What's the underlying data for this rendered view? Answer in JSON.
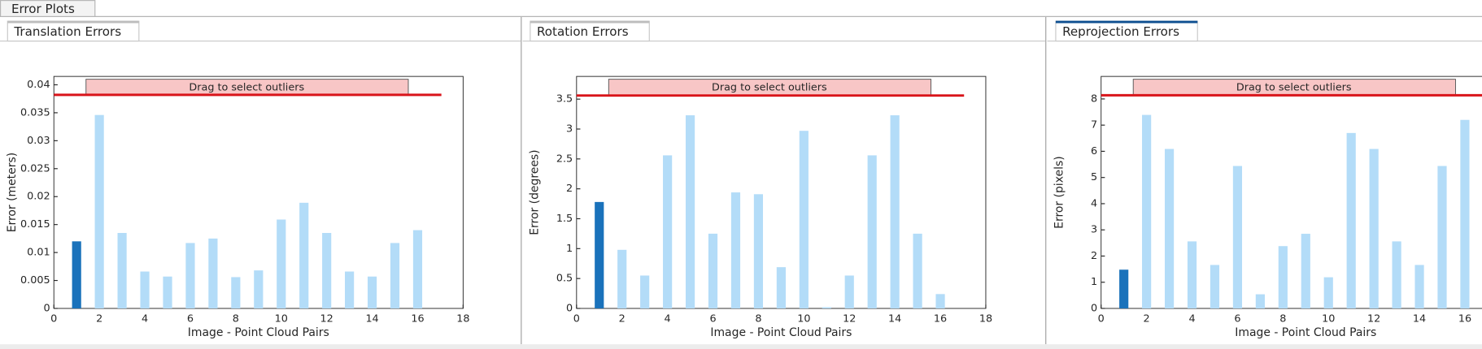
{
  "tabs": {
    "main": "Error Plots"
  },
  "chart_data": [
    {
      "type": "bar",
      "tab": "Translation Errors",
      "button": "Drag to select outliers",
      "xlabel": "Image - Point Cloud Pairs",
      "ylabel": "Error (meters)",
      "x": [
        1,
        2,
        3,
        4,
        5,
        6,
        7,
        8,
        9,
        10,
        11,
        12,
        13,
        14,
        15,
        16
      ],
      "values": [
        0.012,
        0.0346,
        0.0135,
        0.0066,
        0.0057,
        0.0117,
        0.0125,
        0.0056,
        0.0068,
        0.0159,
        0.0189,
        0.0135,
        0.0066,
        0.0057,
        0.0117,
        0.014
      ],
      "threshold": 0.0382,
      "color": "#b3dcf8",
      "selected_color": "#1a72bb",
      "selected": 1,
      "threshold_color": "#d9141a",
      "xlim": [
        0,
        18
      ],
      "xticks": [
        0,
        2,
        4,
        6,
        8,
        10,
        12,
        14,
        16,
        18
      ],
      "ylim": [
        0,
        0.0415
      ],
      "yticks": [
        0,
        0.005,
        0.01,
        0.015,
        0.02,
        0.025,
        0.03,
        0.035,
        0.04
      ]
    },
    {
      "type": "bar",
      "tab": "Rotation Errors",
      "button": "Drag to select outliers",
      "xlabel": "Image - Point Cloud Pairs",
      "ylabel": "Error (degrees)",
      "x": [
        1,
        2,
        3,
        4,
        5,
        6,
        7,
        8,
        9,
        10,
        11,
        12,
        13,
        14,
        15,
        16
      ],
      "values": [
        1.78,
        0.98,
        0.55,
        2.56,
        3.23,
        1.25,
        1.94,
        1.91,
        0.69,
        2.97,
        0.02,
        0.55,
        2.56,
        3.23,
        1.25,
        0.24
      ],
      "threshold": 3.56,
      "color": "#b3dcf8",
      "selected_color": "#1a72bb",
      "selected": 1,
      "threshold_color": "#d9141a",
      "xlim": [
        0,
        18
      ],
      "xticks": [
        0,
        2,
        4,
        6,
        8,
        10,
        12,
        14,
        16,
        18
      ],
      "ylim": [
        0,
        3.88
      ],
      "yticks": [
        0,
        0.5,
        1,
        1.5,
        2,
        2.5,
        3,
        3.5
      ]
    },
    {
      "type": "bar",
      "tab": "Reprojection Errors",
      "button": "Drag to select outliers",
      "xlabel": "Image - Point Cloud Pairs",
      "ylabel": "Error (pixels)",
      "x": [
        1,
        2,
        3,
        4,
        5,
        6,
        7,
        8,
        9,
        10,
        11,
        12,
        13,
        14,
        15,
        16
      ],
      "values": [
        1.48,
        7.39,
        6.09,
        2.56,
        1.66,
        5.44,
        0.54,
        2.38,
        2.85,
        1.19,
        6.7,
        6.09,
        2.56,
        1.66,
        5.44,
        7.2
      ],
      "threshold": 8.14,
      "color": "#b3dcf8",
      "selected_color": "#1a72bb",
      "selected": 1,
      "threshold_color": "#d9141a",
      "xlim": [
        0,
        18
      ],
      "xticks": [
        0,
        2,
        4,
        6,
        8,
        10,
        12,
        14,
        16
      ],
      "ylim": [
        0,
        8.86
      ],
      "yticks": [
        0,
        1,
        2,
        3,
        4,
        5,
        6,
        7,
        8
      ]
    }
  ]
}
